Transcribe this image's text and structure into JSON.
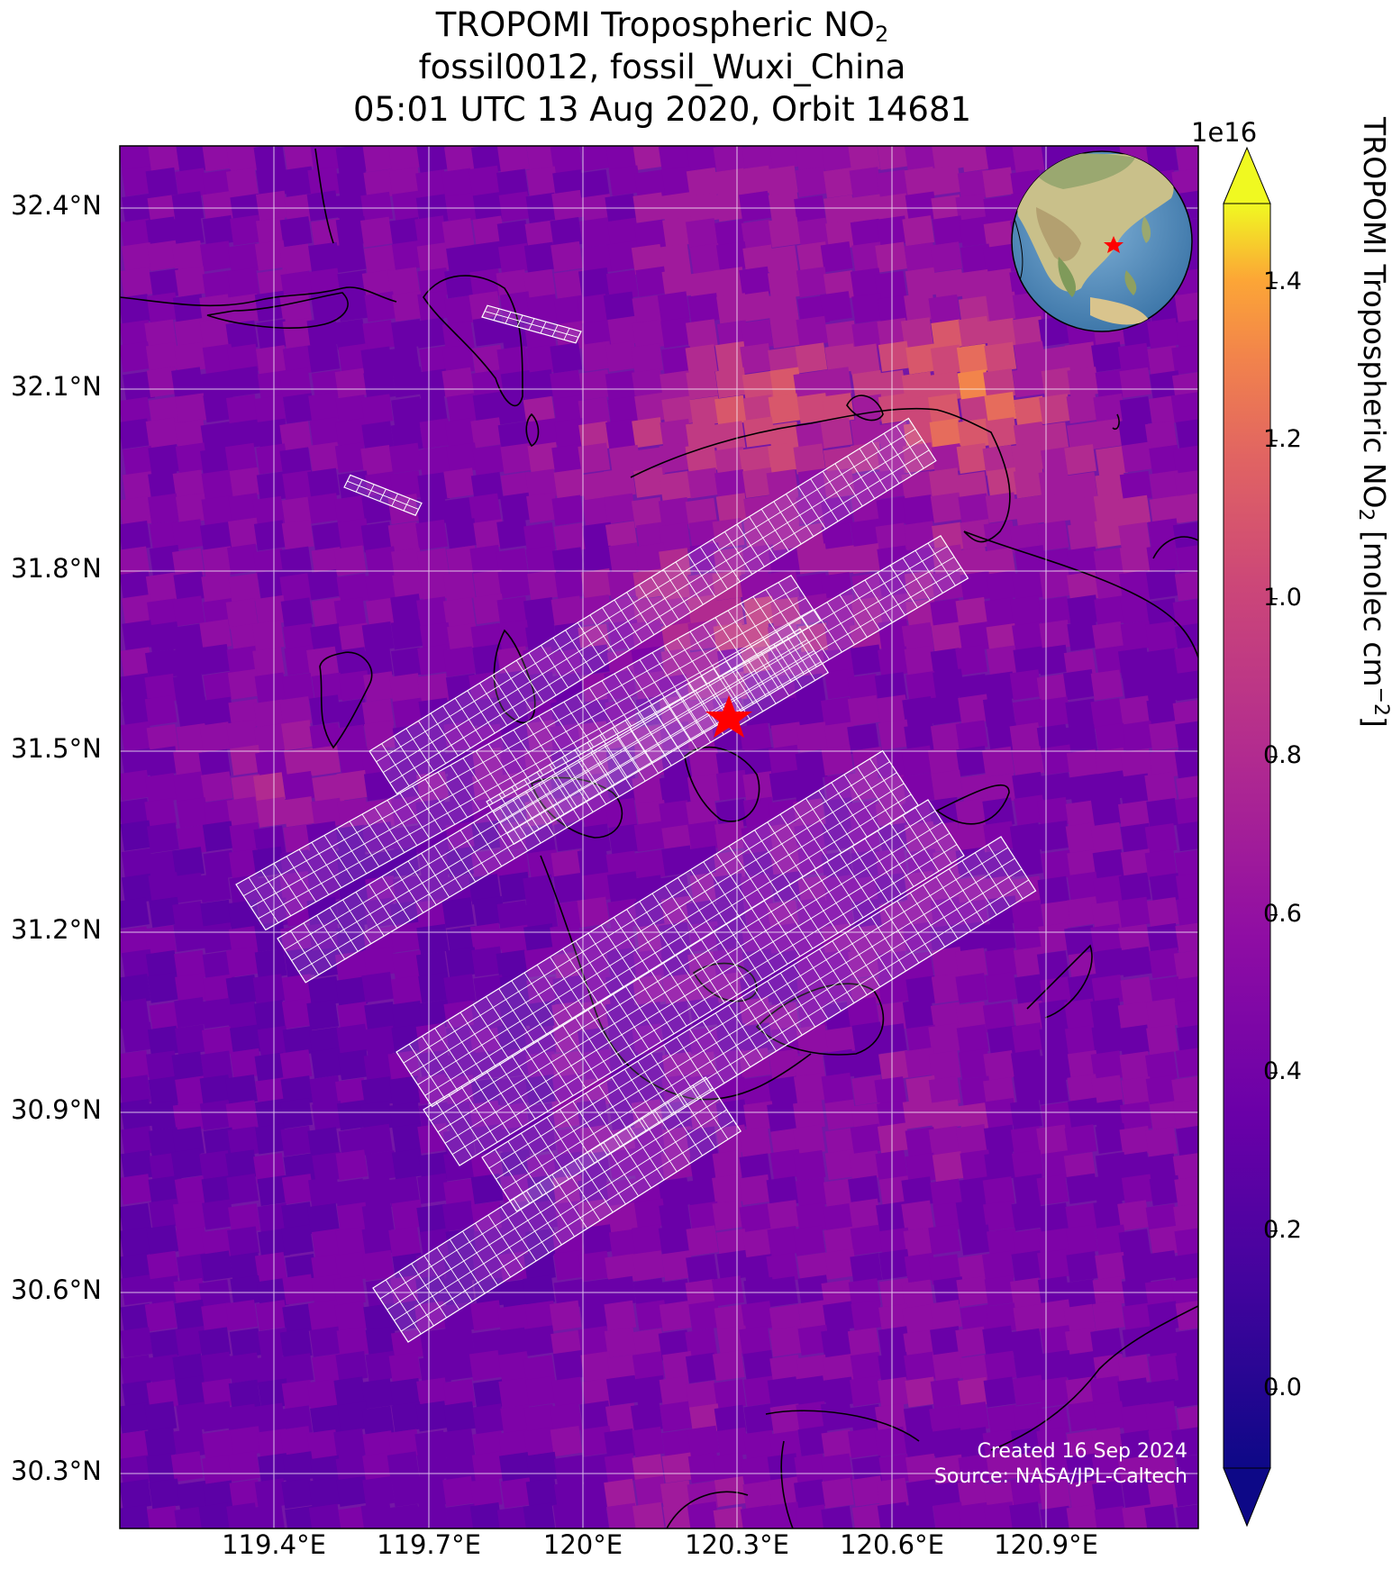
{
  "title": {
    "line1_main": "TROPOMI Tropospheric NO",
    "line1_sub": "2",
    "line2": "fossil0012, fossil_Wuxi_China",
    "line3": "05:01 UTC 13 Aug 2020, Orbit 14681"
  },
  "map": {
    "lat_labels": [
      "32.4°N",
      "32.1°N",
      "31.8°N",
      "31.5°N",
      "31.2°N",
      "30.9°N",
      "30.6°N",
      "30.3°N"
    ],
    "lon_labels": [
      "119.4°E",
      "119.7°E",
      "120°E",
      "120.3°E",
      "120.6°E",
      "120.9°E"
    ],
    "lat_range": [
      30.2,
      32.5
    ],
    "lon_range": [
      119.1,
      121.2
    ],
    "target_marker": {
      "lon": 120.29,
      "lat": 31.57,
      "color": "#ff0000",
      "symbol": "star"
    },
    "inset_globe": {
      "marker": "star",
      "marker_color": "#ff0000"
    },
    "credit_line1": "Created 16 Sep 2024",
    "credit_line2": "Source: NASA/JPL-Caltech"
  },
  "colorbar": {
    "exponent": "1e16",
    "ticks": [
      "0.0",
      "0.2",
      "0.4",
      "0.6",
      "0.8",
      "1.0",
      "1.2",
      "1.4"
    ],
    "tick_values": [
      0.0,
      0.2,
      0.4,
      0.6,
      0.8,
      1.0,
      1.2,
      1.4
    ],
    "range": [
      -0.1,
      1.5
    ],
    "label_main": "TROPOMI Tropospheric NO",
    "label_sub": "2",
    "label_unit": " [molec cm",
    "label_sup": "−2",
    "label_end": "]",
    "colormap": "plasma",
    "extend": "both"
  }
}
